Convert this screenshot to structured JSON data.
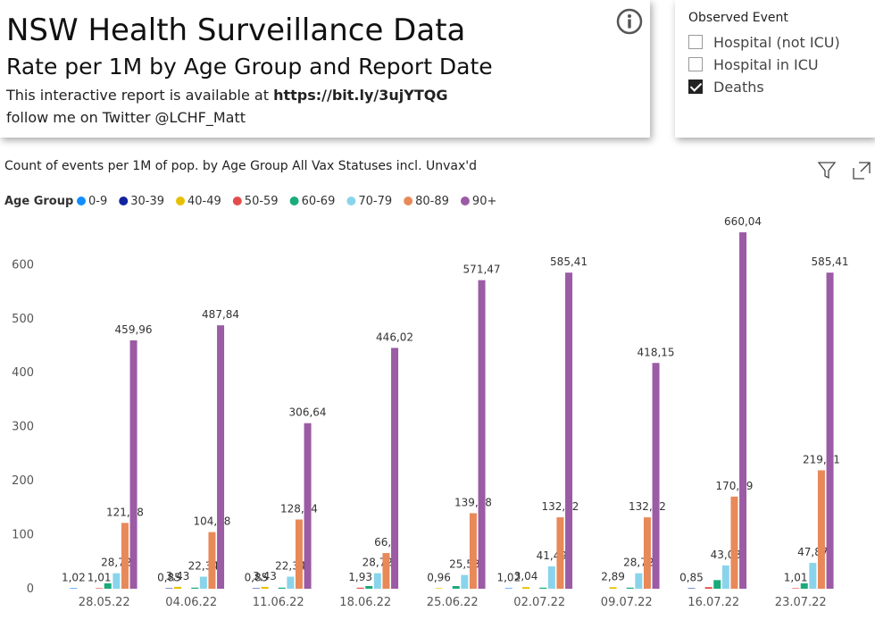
{
  "header": {
    "title": "NSW Health Surveillance Data",
    "subtitle": "Rate per 1M by Age Group and Report Date",
    "report_line": "This interactive report is available at",
    "report_url": "https://bit.ly/3ujYTQG",
    "twitter_line": "follow me on Twitter @LCHF_Matt"
  },
  "slicer": {
    "title": "Observed Event",
    "items": [
      {
        "label": "Hospital (not ICU)",
        "checked": false
      },
      {
        "label": "Hospital in ICU",
        "checked": false
      },
      {
        "label": "Deaths",
        "checked": true
      }
    ]
  },
  "chart_data": {
    "type": "bar",
    "title": "Count of events per 1M of pop. by Age Group All Vax Statuses incl. Unvax'd",
    "legend_title": "Age Group",
    "categories": [
      "28.05.22",
      "04.06.22",
      "11.06.22",
      "18.06.22",
      "25.06.22",
      "02.07.22",
      "09.07.22",
      "16.07.22",
      "23.07.22"
    ],
    "ylim": [
      0,
      680
    ],
    "yticks": [
      0,
      100,
      200,
      300,
      400,
      500,
      600
    ],
    "series": [
      {
        "name": "0-9",
        "color": "#118DFF",
        "values": [
          1.02,
          0,
          0,
          0,
          0,
          1.02,
          0,
          0,
          0
        ],
        "value_labels": [
          "1,02",
          null,
          null,
          null,
          null,
          "1,02",
          null,
          null,
          null
        ]
      },
      {
        "name": "30-39",
        "color": "#12239E",
        "values": [
          0,
          0.85,
          0.85,
          0,
          0,
          0,
          0,
          0.85,
          0
        ],
        "value_labels": [
          null,
          "0,85",
          "0,85",
          null,
          null,
          null,
          null,
          "0,85",
          null
        ]
      },
      {
        "name": "40-49",
        "color": "#E6C000",
        "values": [
          0,
          3.43,
          3.43,
          0,
          0.96,
          3.04,
          2.89,
          0,
          0
        ],
        "value_labels": [
          null,
          "3,43",
          "3,43",
          null,
          "0,96",
          "3,04",
          "2,89",
          null,
          null
        ]
      },
      {
        "name": "50-59",
        "color": "#E44C4C",
        "values": [
          1.01,
          0,
          0,
          1.93,
          0,
          0,
          0,
          3,
          1.01
        ],
        "value_labels": [
          "1,01",
          null,
          null,
          "1,93",
          null,
          null,
          null,
          null,
          "1,01"
        ]
      },
      {
        "name": "60-69",
        "color": "#1AAB7A",
        "values": [
          10,
          2,
          2,
          5,
          5,
          2,
          2,
          16,
          10
        ]
      },
      {
        "name": "70-79",
        "color": "#8AD4EB",
        "values": [
          28.72,
          22.34,
          22.34,
          28.72,
          25.53,
          41.49,
          28.72,
          43.08,
          47.87
        ],
        "value_labels": [
          "28,72",
          "22,34",
          "22,34",
          "28,72",
          "25,53",
          "41,49",
          "28,72",
          "43,08",
          "47,87"
        ]
      },
      {
        "name": "80-89",
        "color": "#E8895A",
        "values": [
          121.88,
          104.88,
          128.24,
          66.1,
          139.88,
          132.22,
          132.22,
          170.59,
          219.31
        ],
        "value_labels": [
          "121,88",
          "104,88",
          "128,24",
          "66,1",
          "139,88",
          "132,22",
          "132,22",
          "170,59",
          "219,31"
        ]
      },
      {
        "name": "90+",
        "color": "#9B5BA5",
        "values": [
          459.96,
          487.84,
          306.64,
          446.02,
          571.47,
          585.41,
          418.15,
          660.04,
          585.41
        ],
        "value_labels": [
          "459,96",
          "487,84",
          "306,64",
          "446,02",
          "571,47",
          "585,41",
          "418,15",
          "660,04",
          "585,41"
        ]
      }
    ]
  }
}
